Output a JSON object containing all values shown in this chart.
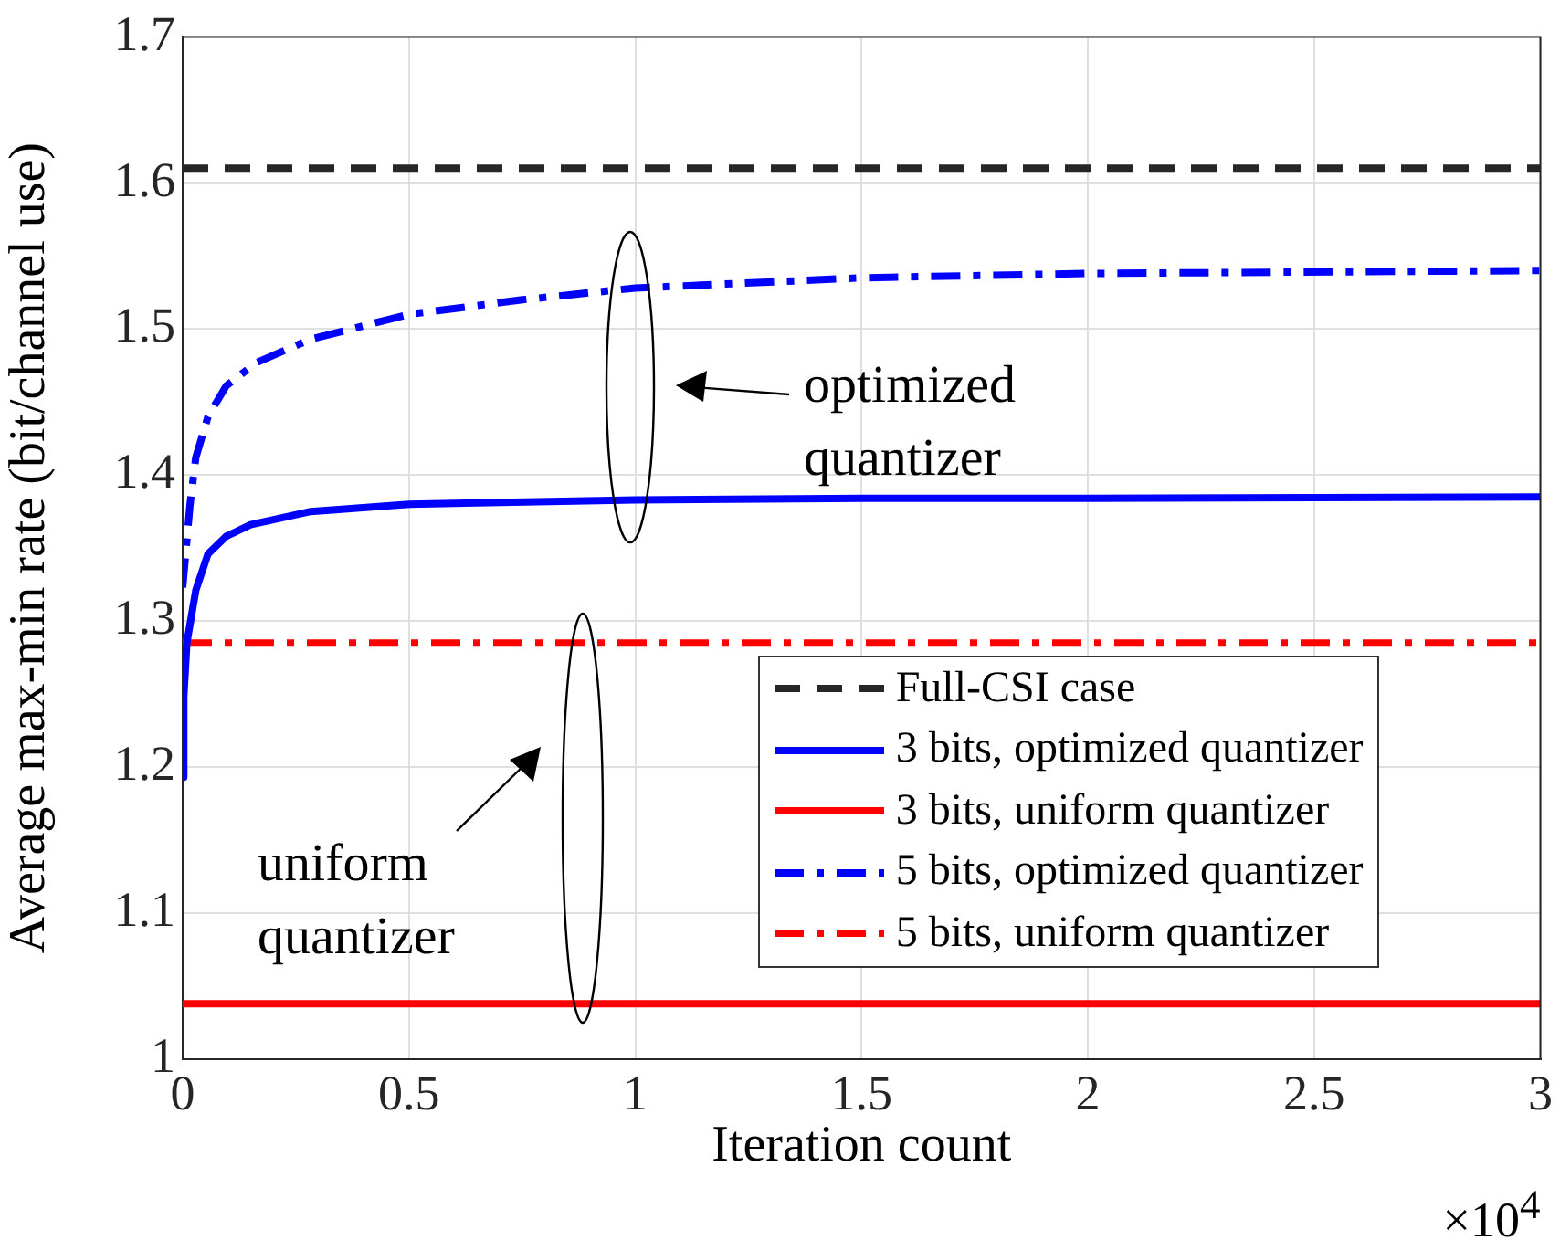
{
  "chart_data": {
    "type": "line",
    "xlabel": "Iteration count",
    "ylabel": "Average max-min rate (bit/channel use)",
    "xlim": [
      0,
      3
    ],
    "xticks": [
      0,
      0.5,
      1,
      1.5,
      2,
      2.5,
      3
    ],
    "ylim": [
      1,
      1.7
    ],
    "yticks": [
      1,
      1.1,
      1.2,
      1.3,
      1.4,
      1.5,
      1.6,
      1.7
    ],
    "grid": true,
    "legend": "bottom right",
    "series": [
      {
        "name": "Full-CSI case",
        "color": "#262626",
        "line_style": "dashed",
        "x": [
          0,
          3
        ],
        "values": [
          1.61,
          1.61
        ]
      },
      {
        "name": "3 bits, optimized quantizer",
        "color": "#0000ff",
        "line_style": "solid",
        "x": [
          0,
          0.0025,
          0.0092,
          0.029,
          0.056,
          0.096,
          0.15,
          0.283,
          0.5,
          1,
          1.5,
          2,
          3
        ],
        "values": [
          1.193,
          1.248,
          1.285,
          1.321,
          1.346,
          1.358,
          1.366,
          1.375,
          1.38,
          1.383,
          1.384,
          1.384,
          1.385
        ]
      },
      {
        "name": "3 bits, uniform quantizer",
        "color": "#ff0000",
        "line_style": "solid",
        "x": [
          0,
          3
        ],
        "values": [
          1.038,
          1.038
        ]
      },
      {
        "name": "5 bits, optimized quantizer",
        "color": "#0000ff",
        "line_style": "dashdot",
        "x": [
          0,
          0.016,
          0.029,
          0.056,
          0.096,
          0.163,
          0.283,
          0.5,
          0.751,
          1,
          1.5,
          2,
          3
        ],
        "values": [
          1.323,
          1.379,
          1.412,
          1.44,
          1.461,
          1.477,
          1.493,
          1.51,
          1.52,
          1.528,
          1.535,
          1.538,
          1.54
        ]
      },
      {
        "name": "5 bits, uniform quantizer",
        "color": "#ff0000",
        "line_style": "dashdot",
        "x": [
          0,
          3
        ],
        "values": [
          1.285,
          1.285
        ]
      }
    ],
    "annotations": [
      "optimized quantizer",
      "uniform quantizer",
      "×10$^{4}$"
    ]
  }
}
